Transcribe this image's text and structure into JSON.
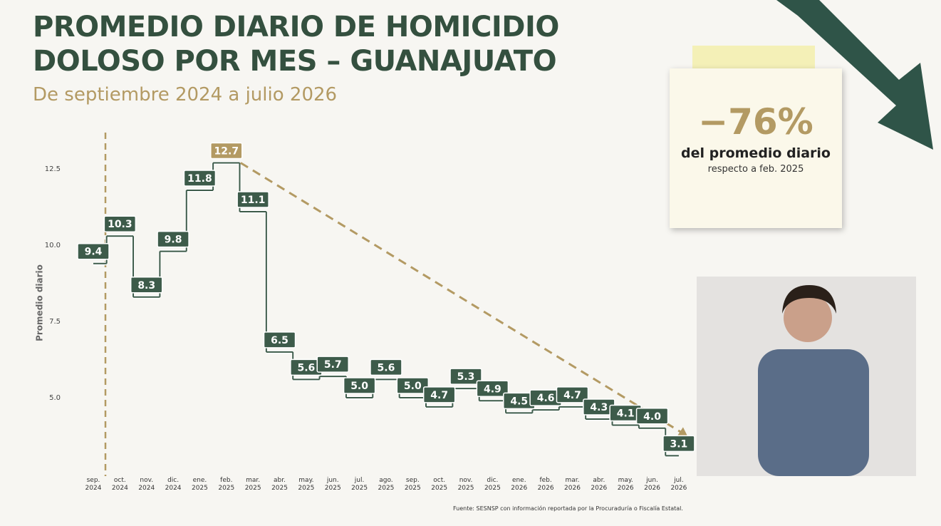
{
  "chart_data": {
    "type": "step",
    "title": "PROMEDIO DIARIO DE HOMICIDIO DOLOSO POR MES – GUANAJUATO",
    "subtitle": "De septiembre 2024 a julio 2026",
    "ylabel": "Promedio diario",
    "categories": [
      "sep. 2024",
      "oct. 2024",
      "nov. 2024",
      "dic. 2024",
      "ene. 2025",
      "feb. 2025",
      "mar. 2025",
      "abr. 2025",
      "may. 2025",
      "jun. 2025",
      "jul. 2025",
      "ago. 2025",
      "sep. 2025",
      "oct. 2025",
      "nov. 2025",
      "dic. 2025",
      "ene. 2026",
      "feb. 2026",
      "mar. 2026",
      "abr. 2026",
      "may. 2026",
      "jun. 2026",
      "jul. 2026"
    ],
    "values": [
      9.4,
      10.3,
      8.3,
      9.8,
      11.8,
      12.7,
      11.1,
      6.5,
      5.6,
      5.7,
      5.0,
      5.6,
      5.0,
      4.7,
      5.3,
      4.9,
      4.5,
      4.6,
      4.7,
      4.3,
      4.1,
      4.0,
      3.1
    ],
    "value_labels": [
      "9.4",
      "10.3",
      "8.3",
      "9.8",
      "11.8",
      "12.7",
      "11.1",
      "6.5",
      "5.6",
      "5.7",
      "5.0",
      "5.6",
      "5.0",
      "4.7",
      "5.3",
      "4.9",
      "4.5",
      "4.6",
      "4.7",
      "4.3",
      "4.1",
      "4.0",
      "3.1"
    ],
    "color": "#3d5b4a",
    "highlight_color": "#b39a63",
    "ylim": [
      2.5,
      13.6
    ],
    "yticks": [
      {
        "value": 5,
        "label": "5.0"
      },
      {
        "value": 7.5,
        "label": "7.5"
      },
      {
        "value": 10,
        "label": "10.0"
      },
      {
        "value": 12.5,
        "label": "12.5"
      }
    ],
    "annotation": {
      "value": "−76%",
      "text": "del promedio diario",
      "subtext": "respecto a feb. 2025"
    },
    "source": "Fuente: SESNSP con información reportada por la Procuraduría o Fiscalía Estatal."
  }
}
